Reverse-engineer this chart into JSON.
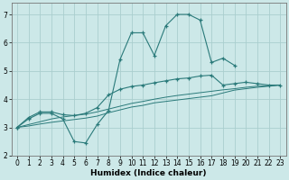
{
  "xlabel": "Humidex (Indice chaleur)",
  "x_values": [
    0,
    1,
    2,
    3,
    4,
    5,
    6,
    7,
    8,
    9,
    10,
    11,
    12,
    13,
    14,
    15,
    16,
    17,
    18,
    19,
    20,
    21,
    22,
    23
  ],
  "line1_y": [
    3.0,
    3.3,
    3.5,
    3.5,
    3.3,
    2.5,
    2.45,
    3.1,
    3.6,
    5.4,
    6.35,
    6.35,
    5.55,
    6.6,
    7.0,
    7.0,
    6.8,
    5.3,
    5.45,
    5.2,
    null,
    null,
    null,
    null
  ],
  "line2_y": [
    3.0,
    3.35,
    3.55,
    3.55,
    3.45,
    3.42,
    3.5,
    3.7,
    4.15,
    4.35,
    4.45,
    4.5,
    4.58,
    4.65,
    4.72,
    4.75,
    4.82,
    4.85,
    4.5,
    4.55,
    4.6,
    4.55,
    4.5,
    4.5
  ],
  "line3_y": [
    3.0,
    3.1,
    3.2,
    3.3,
    3.37,
    3.42,
    3.47,
    3.55,
    3.65,
    3.75,
    3.85,
    3.92,
    4.0,
    4.07,
    4.13,
    4.18,
    4.23,
    4.28,
    4.33,
    4.37,
    4.42,
    4.46,
    4.47,
    4.5
  ],
  "line4_y": [
    3.0,
    3.05,
    3.12,
    3.18,
    3.23,
    3.28,
    3.33,
    3.4,
    3.52,
    3.62,
    3.72,
    3.78,
    3.87,
    3.92,
    3.97,
    4.02,
    4.07,
    4.12,
    4.22,
    4.32,
    4.37,
    4.42,
    4.46,
    4.5
  ],
  "line_color": "#2a7a7a",
  "bg_color": "#cce8e8",
  "grid_color": "#aacece",
  "ylim": [
    2.0,
    7.4
  ],
  "xlim": [
    -0.5,
    23.5
  ],
  "yticks": [
    2,
    3,
    4,
    5,
    6,
    7
  ],
  "xticks": [
    0,
    1,
    2,
    3,
    4,
    5,
    6,
    7,
    8,
    9,
    10,
    11,
    12,
    13,
    14,
    15,
    16,
    17,
    18,
    19,
    20,
    21,
    22,
    23
  ]
}
